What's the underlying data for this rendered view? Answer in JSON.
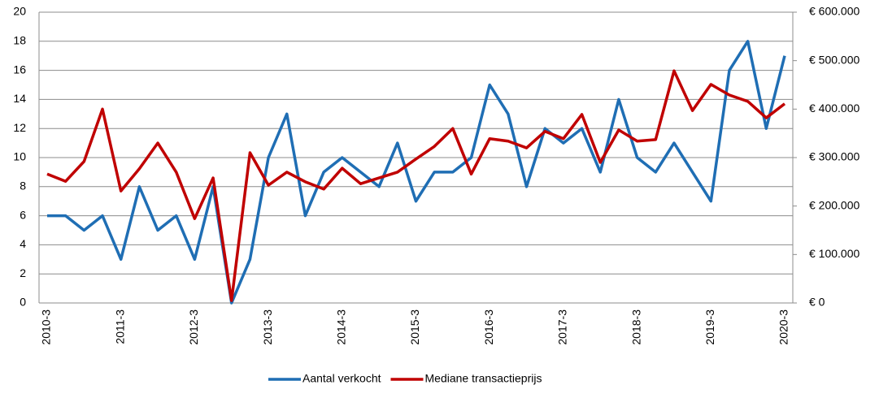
{
  "chart_data": {
    "type": "line",
    "categories": [
      "2010-3",
      null,
      null,
      null,
      "2011-3",
      null,
      null,
      null,
      "2012-3",
      null,
      null,
      null,
      "2013-3",
      null,
      null,
      null,
      "2014-3",
      null,
      null,
      null,
      "2015-3",
      null,
      null,
      null,
      "2016-3",
      null,
      null,
      null,
      "2017-3",
      null,
      null,
      null,
      "2018-3",
      null,
      null,
      null,
      "2019-3",
      null,
      null,
      null,
      "2020-3"
    ],
    "series": [
      {
        "name": "Aantal verkocht",
        "color": "#1f6eb4",
        "values": [
          6,
          6,
          5,
          6,
          3,
          8,
          5,
          6,
          3,
          8,
          0,
          3,
          10,
          13,
          6,
          9,
          10,
          9,
          8,
          11,
          7,
          9,
          9,
          10,
          15,
          13,
          8,
          12,
          11,
          12,
          9,
          14,
          10,
          9,
          11,
          9,
          7,
          16,
          18,
          12,
          17
        ]
      },
      {
        "name": "Mediane transactieprijs",
        "color": "#c00000",
        "axis": "y2",
        "values": [
          266000,
          251000,
          292000,
          400000,
          231000,
          277000,
          330000,
          270000,
          174000,
          258000,
          5000,
          310000,
          243000,
          270000,
          250000,
          235000,
          278000,
          246000,
          258000,
          270000,
          297000,
          323000,
          360000,
          266000,
          339000,
          334000,
          320000,
          354000,
          339000,
          389000,
          290000,
          357000,
          334000,
          337000,
          479000,
          397000,
          451000,
          429000,
          416000,
          382000,
          411000
        ]
      }
    ],
    "ylim": [
      0,
      20
    ],
    "yticks": [
      0,
      2,
      4,
      6,
      8,
      10,
      12,
      14,
      16,
      18,
      20
    ],
    "y2lim": [
      0,
      600000
    ],
    "y2ticks": [
      {
        "value": 0,
        "label": "€ 0"
      },
      {
        "value": 100000,
        "label": "€ 100.000"
      },
      {
        "value": 200000,
        "label": "€ 200.000"
      },
      {
        "value": 300000,
        "label": "€ 300.000"
      },
      {
        "value": 400000,
        "label": "€ 400.000"
      },
      {
        "value": 500000,
        "label": "€ 500.000"
      },
      {
        "value": 600000,
        "label": "€ 600.000"
      }
    ],
    "grid": true,
    "legend": "bottom"
  }
}
